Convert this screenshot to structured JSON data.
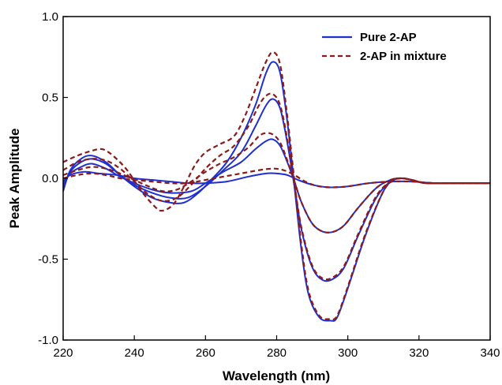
{
  "colors": {
    "pure": "#1f2fd0",
    "mixture": "#8b1a1a",
    "axis": "#000000",
    "background": "#ffffff"
  },
  "chart_data": {
    "type": "line",
    "title": "",
    "xlabel": "Wavelength (nm)",
    "ylabel": "Peak Amplitude",
    "xlim": [
      220,
      340
    ],
    "ylim": [
      -1.0,
      1.0
    ],
    "xticks": [
      220,
      240,
      260,
      280,
      300,
      320,
      340
    ],
    "yticks": [
      -1.0,
      -0.5,
      0.0,
      0.5,
      1.0
    ],
    "xtick_labels": [
      "220",
      "240",
      "260",
      "280",
      "300",
      "320",
      "340"
    ],
    "ytick_labels": [
      "-1.0",
      "-0.5",
      "0.0",
      "0.5",
      "1.0"
    ],
    "grid": false,
    "legend_position": "top-right",
    "legend": [
      {
        "label": "Pure 2-AP",
        "style": "solid",
        "color": "#1f2fd0"
      },
      {
        "label": "2-AP in mixture",
        "style": "dashed",
        "color": "#8b1a1a"
      }
    ],
    "series": [
      {
        "group": "pure",
        "style": "solid",
        "color": "#1f2fd0",
        "x": [
          220,
          222,
          225,
          228,
          232,
          236,
          240,
          245,
          250,
          254,
          258,
          262,
          266,
          270,
          274,
          277,
          279,
          281,
          283,
          285,
          287,
          289,
          292,
          295,
          297,
          300,
          305,
          310,
          313,
          315,
          318,
          322,
          330,
          340
        ],
        "y": [
          -0.08,
          0.05,
          0.12,
          0.14,
          0.1,
          0.02,
          -0.05,
          -0.12,
          -0.15,
          -0.15,
          -0.09,
          0.0,
          0.1,
          0.25,
          0.45,
          0.65,
          0.72,
          0.65,
          0.35,
          -0.05,
          -0.45,
          -0.72,
          -0.86,
          -0.88,
          -0.86,
          -0.68,
          -0.35,
          -0.08,
          -0.01,
          0.0,
          -0.01,
          -0.03,
          -0.03,
          -0.03
        ]
      },
      {
        "group": "pure",
        "style": "solid",
        "color": "#1f2fd0",
        "x": [
          220,
          222,
          225,
          228,
          232,
          236,
          240,
          245,
          250,
          255,
          260,
          265,
          270,
          274,
          277,
          279,
          281,
          283,
          285,
          287,
          290,
          293,
          296,
          299,
          303,
          308,
          312,
          315,
          318,
          322,
          330,
          340
        ],
        "y": [
          -0.06,
          0.04,
          0.1,
          0.12,
          0.09,
          0.02,
          -0.04,
          -0.09,
          -0.12,
          -0.12,
          -0.05,
          0.05,
          0.16,
          0.32,
          0.45,
          0.49,
          0.43,
          0.22,
          -0.05,
          -0.32,
          -0.55,
          -0.63,
          -0.62,
          -0.55,
          -0.35,
          -0.12,
          -0.02,
          0.0,
          -0.01,
          -0.03,
          -0.03,
          -0.03
        ]
      },
      {
        "group": "pure",
        "style": "solid",
        "color": "#1f2fd0",
        "x": [
          220,
          222,
          225,
          228,
          232,
          236,
          240,
          245,
          250,
          256,
          260,
          265,
          270,
          274,
          277,
          279,
          281,
          283,
          285,
          287,
          290,
          293,
          296,
          299,
          303,
          308,
          312,
          315,
          318,
          322,
          330,
          340
        ],
        "y": [
          -0.04,
          0.03,
          0.07,
          0.09,
          0.06,
          0.01,
          -0.03,
          -0.07,
          -0.09,
          -0.08,
          -0.03,
          0.04,
          0.1,
          0.18,
          0.23,
          0.24,
          0.2,
          0.1,
          -0.02,
          -0.15,
          -0.28,
          -0.33,
          -0.33,
          -0.29,
          -0.18,
          -0.06,
          -0.01,
          0.0,
          -0.01,
          -0.03,
          -0.03,
          -0.03
        ]
      },
      {
        "group": "pure",
        "style": "solid",
        "color": "#1f2fd0",
        "x": [
          220,
          222,
          226,
          230,
          235,
          240,
          245,
          250,
          255,
          260,
          266,
          272,
          277,
          280,
          283,
          286,
          290,
          294,
          297,
          300,
          306,
          312,
          318,
          325,
          340
        ],
        "y": [
          -0.02,
          0.02,
          0.04,
          0.03,
          0.02,
          0.0,
          -0.01,
          -0.02,
          -0.03,
          -0.03,
          -0.02,
          0.01,
          0.03,
          0.03,
          0.02,
          -0.01,
          -0.04,
          -0.055,
          -0.055,
          -0.05,
          -0.03,
          -0.02,
          -0.02,
          -0.03,
          -0.03
        ]
      },
      {
        "group": "mixture",
        "style": "dashed",
        "color": "#8b1a1a",
        "x": [
          220,
          224,
          228,
          231,
          234,
          238,
          242,
          246,
          248,
          251,
          254,
          257,
          260,
          264,
          268,
          271,
          274,
          277,
          279,
          281,
          283,
          285,
          287,
          289,
          292,
          295,
          297,
          300,
          305,
          310,
          313,
          315,
          318,
          322,
          330,
          340
        ],
        "y": [
          0.1,
          0.14,
          0.17,
          0.18,
          0.14,
          0.05,
          -0.08,
          -0.18,
          -0.2,
          -0.16,
          -0.05,
          0.08,
          0.16,
          0.21,
          0.26,
          0.38,
          0.55,
          0.72,
          0.78,
          0.7,
          0.38,
          -0.02,
          -0.42,
          -0.7,
          -0.85,
          -0.87,
          -0.85,
          -0.67,
          -0.34,
          -0.08,
          -0.01,
          0.0,
          -0.01,
          -0.03,
          -0.03,
          -0.03
        ]
      },
      {
        "group": "mixture",
        "style": "dashed",
        "color": "#8b1a1a",
        "x": [
          220,
          224,
          228,
          232,
          236,
          240,
          244,
          248,
          252,
          256,
          260,
          264,
          268,
          272,
          275,
          277,
          279,
          281,
          283,
          285,
          287,
          290,
          293,
          296,
          299,
          303,
          308,
          312,
          315,
          318,
          322,
          330,
          340
        ],
        "y": [
          0.05,
          0.1,
          0.12,
          0.11,
          0.06,
          -0.02,
          -0.1,
          -0.14,
          -0.12,
          -0.04,
          0.06,
          0.14,
          0.2,
          0.32,
          0.45,
          0.51,
          0.52,
          0.45,
          0.24,
          -0.04,
          -0.31,
          -0.54,
          -0.62,
          -0.61,
          -0.54,
          -0.34,
          -0.11,
          -0.02,
          0.0,
          -0.01,
          -0.03,
          -0.03,
          -0.03
        ]
      },
      {
        "group": "mixture",
        "style": "dashed",
        "color": "#8b1a1a",
        "x": [
          220,
          224,
          228,
          232,
          236,
          240,
          244,
          248,
          252,
          256,
          260,
          264,
          268,
          272,
          275,
          277,
          279,
          281,
          283,
          285,
          287,
          290,
          293,
          296,
          299,
          303,
          308,
          312,
          315,
          318,
          322,
          330,
          340
        ],
        "y": [
          0.02,
          0.05,
          0.07,
          0.06,
          0.03,
          -0.01,
          -0.05,
          -0.08,
          -0.07,
          -0.02,
          0.04,
          0.09,
          0.13,
          0.19,
          0.26,
          0.28,
          0.27,
          0.22,
          0.11,
          -0.02,
          -0.15,
          -0.28,
          -0.33,
          -0.33,
          -0.29,
          -0.18,
          -0.06,
          -0.01,
          0.0,
          -0.01,
          -0.03,
          -0.03,
          -0.03
        ]
      },
      {
        "group": "mixture",
        "style": "dashed",
        "color": "#8b1a1a",
        "x": [
          220,
          224,
          228,
          232,
          236,
          240,
          245,
          250,
          255,
          260,
          265,
          270,
          275,
          279,
          282,
          285,
          288,
          291,
          294,
          297,
          300,
          306,
          312,
          318,
          325,
          340
        ],
        "y": [
          0.0,
          0.02,
          0.03,
          0.02,
          0.0,
          -0.01,
          -0.02,
          -0.03,
          -0.03,
          -0.01,
          0.01,
          0.03,
          0.05,
          0.06,
          0.05,
          0.02,
          -0.02,
          -0.045,
          -0.055,
          -0.055,
          -0.05,
          -0.03,
          -0.02,
          -0.02,
          -0.03,
          -0.03
        ]
      }
    ]
  }
}
